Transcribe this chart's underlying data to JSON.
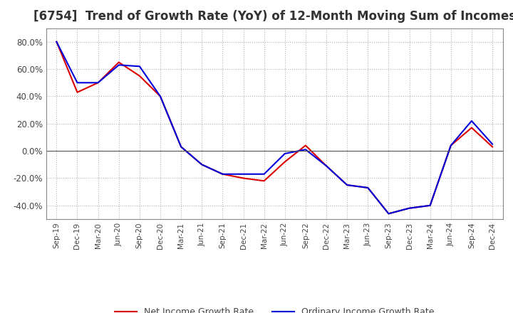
{
  "title": "[6754]  Trend of Growth Rate (YoY) of 12-Month Moving Sum of Incomes",
  "title_fontsize": 12,
  "background_color": "#ffffff",
  "grid_color": "#aaaaaa",
  "x_labels": [
    "Sep-19",
    "Dec-19",
    "Mar-20",
    "Jun-20",
    "Sep-20",
    "Dec-20",
    "Mar-21",
    "Jun-21",
    "Sep-21",
    "Dec-21",
    "Mar-22",
    "Jun-22",
    "Sep-22",
    "Dec-22",
    "Mar-23",
    "Jun-23",
    "Sep-23",
    "Dec-23",
    "Mar-24",
    "Jun-24",
    "Sep-24",
    "Dec-24"
  ],
  "ordinary_income": [
    0.8,
    0.5,
    0.5,
    0.63,
    0.62,
    0.4,
    0.03,
    -0.1,
    -0.17,
    -0.17,
    -0.17,
    -0.02,
    0.01,
    -0.11,
    -0.25,
    -0.27,
    -0.46,
    -0.42,
    -0.4,
    0.04,
    0.22,
    0.05
  ],
  "net_income": [
    0.8,
    0.43,
    0.5,
    0.65,
    0.55,
    0.4,
    0.03,
    -0.1,
    -0.17,
    -0.2,
    -0.22,
    -0.08,
    0.04,
    -0.11,
    -0.25,
    -0.27,
    -0.46,
    -0.42,
    -0.4,
    0.04,
    0.17,
    0.03
  ],
  "ordinary_color": "#0000dd",
  "net_color": "#dd0000",
  "ylim_min": -0.5,
  "ylim_max": 0.9,
  "yticks": [
    -0.4,
    -0.2,
    0.0,
    0.2,
    0.4,
    0.6,
    0.8
  ],
  "legend_labels": [
    "Ordinary Income Growth Rate",
    "Net Income Growth Rate"
  ]
}
